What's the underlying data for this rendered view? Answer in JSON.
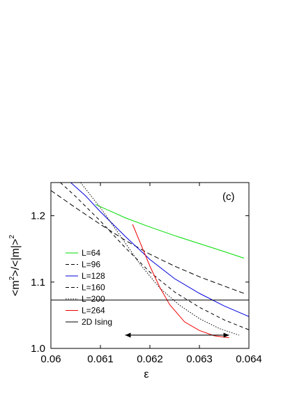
{
  "chart_data": {
    "type": "line",
    "title": "",
    "panel_label": "(c)",
    "xlabel": "ε",
    "ylabel": "<m²>/<|m|>²",
    "ylabel_parts": {
      "main": "<m",
      "sup1": "2",
      "mid": ">/<|m|>",
      "sup2": "2"
    },
    "xlim": [
      0.06,
      0.064
    ],
    "ylim": [
      1.0,
      1.25
    ],
    "xticks": [
      "0.06",
      "0.061",
      "0.062",
      "0.063",
      "0.064"
    ],
    "xtick_values": [
      0.06,
      0.061,
      0.062,
      0.063,
      0.064
    ],
    "yticks": [
      "1.0",
      "1.1",
      "1.2"
    ],
    "ytick_values": [
      1.0,
      1.1,
      1.2
    ],
    "grid": false,
    "legend_position": "left",
    "series": [
      {
        "name": "L=64",
        "color": "#00dd00",
        "dash": "solid",
        "x": [
          0.0609,
          0.0612,
          0.0615,
          0.062,
          0.0625,
          0.063,
          0.0635,
          0.0639
        ],
        "y": [
          1.217,
          1.207,
          1.197,
          1.183,
          1.17,
          1.158,
          1.146,
          1.136
        ]
      },
      {
        "name": "L=96",
        "color": "#000000",
        "dash": "long",
        "x": [
          0.06,
          0.0605,
          0.061,
          0.0615,
          0.062,
          0.0625,
          0.063,
          0.0635,
          0.0639
        ],
        "y": [
          1.238,
          1.212,
          1.187,
          1.163,
          1.142,
          1.124,
          1.108,
          1.094,
          1.083
        ]
      },
      {
        "name": "L=128",
        "color": "#0000dd",
        "dash": "solid",
        "x": [
          0.0604,
          0.0607,
          0.061,
          0.0615,
          0.062,
          0.0625,
          0.063,
          0.0635,
          0.064
        ],
        "y": [
          1.25,
          1.23,
          1.206,
          1.169,
          1.134,
          1.105,
          1.083,
          1.064,
          1.048
        ]
      },
      {
        "name": "L=160",
        "color": "#000000",
        "dash": "medium",
        "x": [
          0.06,
          0.0605,
          0.061,
          0.0615,
          0.062,
          0.0625,
          0.063,
          0.0635,
          0.064
        ],
        "y": [
          1.263,
          1.229,
          1.192,
          1.152,
          1.115,
          1.085,
          1.062,
          1.043,
          1.028
        ]
      },
      {
        "name": "L=200",
        "color": "#000000",
        "dash": "dot",
        "x": [
          0.0606,
          0.061,
          0.0614,
          0.0618,
          0.0622,
          0.0626,
          0.063,
          0.0634,
          0.0638
        ],
        "y": [
          1.25,
          1.212,
          1.17,
          1.127,
          1.091,
          1.065,
          1.045,
          1.03,
          1.02
        ]
      },
      {
        "name": "L=264",
        "color": "#ee0000",
        "dash": "solid",
        "x": [
          0.06165,
          0.0618,
          0.062,
          0.0622,
          0.0624,
          0.0627,
          0.063,
          0.0633,
          0.0636
        ],
        "y": [
          1.187,
          1.16,
          1.124,
          1.092,
          1.066,
          1.04,
          1.027,
          1.019,
          1.016
        ]
      },
      {
        "name": "2D Ising",
        "color": "#000000",
        "dash": "solid",
        "x": [
          0.06,
          0.064
        ],
        "y": [
          1.0729,
          1.0729
        ]
      }
    ],
    "annotations": [
      {
        "type": "double-arrow",
        "x": [
          0.0615,
          0.0636
        ],
        "y": [
          1.02,
          1.02
        ]
      }
    ]
  }
}
